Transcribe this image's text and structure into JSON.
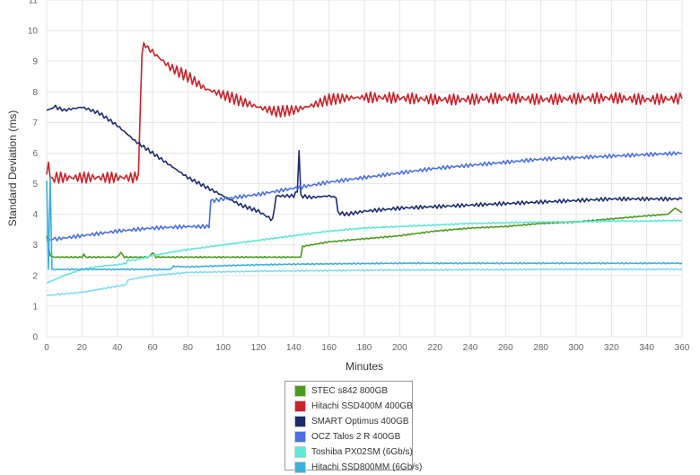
{
  "chart_data": {
    "type": "line",
    "title": "",
    "xlabel": "Minutes",
    "ylabel": "Standard Deviation (ms)",
    "xlim": [
      0,
      360
    ],
    "ylim": [
      0,
      11
    ],
    "xticks": [
      0,
      20,
      40,
      60,
      80,
      100,
      120,
      140,
      160,
      180,
      200,
      220,
      240,
      260,
      280,
      300,
      320,
      340,
      360
    ],
    "yticks": [
      0,
      1,
      2,
      3,
      4,
      5,
      6,
      7,
      8,
      9,
      10,
      11
    ],
    "grid": true,
    "legend_position": "bottom",
    "series": [
      {
        "name": "STEC s842 800GB",
        "color": "#4a9a1e",
        "x": [
          0,
          2,
          4,
          20,
          21,
          22,
          40,
          42,
          44,
          58,
          60,
          62,
          80,
          100,
          120,
          140,
          144,
          145,
          160,
          180,
          200,
          220,
          240,
          260,
          280,
          300,
          320,
          340,
          352,
          356,
          360
        ],
        "y": [
          3.3,
          2.65,
          2.6,
          2.6,
          2.7,
          2.6,
          2.6,
          2.75,
          2.6,
          2.6,
          2.75,
          2.6,
          2.6,
          2.6,
          2.6,
          2.6,
          2.6,
          2.95,
          3.1,
          3.2,
          3.3,
          3.45,
          3.55,
          3.6,
          3.7,
          3.75,
          3.85,
          3.95,
          4.0,
          4.2,
          4.05
        ]
      },
      {
        "name": "Hitachi SSD400M 400GB",
        "color": "#cc2229",
        "x": [
          0,
          1,
          2,
          50,
          52,
          53,
          54,
          56,
          60,
          70,
          80,
          90,
          100,
          110,
          120,
          130,
          140,
          150,
          160,
          170,
          180,
          200,
          220,
          240,
          260,
          280,
          300,
          320,
          340,
          360
        ],
        "y": [
          5.3,
          5.7,
          5.2,
          5.2,
          5.3,
          7.2,
          9.4,
          9.5,
          9.3,
          8.8,
          8.5,
          8.1,
          7.9,
          7.7,
          7.5,
          7.35,
          7.4,
          7.55,
          7.75,
          7.8,
          7.82,
          7.8,
          7.75,
          7.75,
          7.8,
          7.75,
          7.78,
          7.8,
          7.75,
          7.78
        ]
      },
      {
        "name": "SMART Optimus 400GB",
        "color": "#1c2d6e",
        "x": [
          0,
          5,
          10,
          20,
          30,
          40,
          50,
          60,
          70,
          80,
          90,
          100,
          110,
          120,
          127,
          128,
          130,
          140,
          142,
          143,
          144,
          150,
          160,
          164,
          165,
          170,
          180,
          200,
          220,
          240,
          260,
          280,
          300,
          320,
          340,
          360
        ],
        "y": [
          7.4,
          7.5,
          7.4,
          7.5,
          7.3,
          6.9,
          6.4,
          6.0,
          5.6,
          5.2,
          4.9,
          4.6,
          4.3,
          4.1,
          3.85,
          3.8,
          4.6,
          4.6,
          4.75,
          6.1,
          4.6,
          4.55,
          4.6,
          4.55,
          4.05,
          4.0,
          4.1,
          4.2,
          4.25,
          4.3,
          4.35,
          4.4,
          4.45,
          4.5,
          4.5,
          4.5
        ]
      },
      {
        "name": "OCZ Talos 2 R 400GB",
        "color": "#4b6fe6",
        "x": [
          0,
          20,
          40,
          60,
          80,
          92,
          93,
          95,
          100,
          120,
          140,
          160,
          180,
          200,
          220,
          240,
          260,
          280,
          300,
          320,
          340,
          360
        ],
        "y": [
          3.15,
          3.3,
          3.45,
          3.55,
          3.6,
          3.6,
          4.45,
          4.45,
          4.5,
          4.65,
          4.85,
          5.05,
          5.2,
          5.35,
          5.5,
          5.6,
          5.7,
          5.8,
          5.85,
          5.9,
          5.95,
          6.0
        ]
      },
      {
        "name": "Toshiba PX02SM (6Gb/s)",
        "color": "#5ee8d8",
        "x": [
          0,
          10,
          20,
          30,
          40,
          45,
          46,
          50,
          60,
          80,
          100,
          120,
          140,
          160,
          180,
          200,
          220,
          240,
          260,
          280,
          300,
          320,
          340,
          360
        ],
        "y": [
          1.75,
          2.0,
          2.2,
          2.3,
          2.35,
          2.4,
          2.5,
          2.5,
          2.65,
          2.85,
          3.0,
          3.15,
          3.3,
          3.45,
          3.55,
          3.6,
          3.65,
          3.7,
          3.72,
          3.75,
          3.75,
          3.78,
          3.78,
          3.8
        ]
      },
      {
        "name": "Hitachi SSD800MM (6Gb/s)",
        "color": "#3bb0dc",
        "x": [
          0,
          1,
          2,
          3,
          5,
          20,
          40,
          60,
          70,
          72,
          80,
          100,
          120,
          140,
          160,
          180,
          200,
          220,
          240,
          260,
          280,
          300,
          320,
          340,
          360
        ],
        "y": [
          5.1,
          2.2,
          5.2,
          2.2,
          2.2,
          2.2,
          2.2,
          2.2,
          2.2,
          2.3,
          2.28,
          2.32,
          2.35,
          2.37,
          2.38,
          2.39,
          2.4,
          2.4,
          2.4,
          2.4,
          2.4,
          2.4,
          2.4,
          2.4,
          2.4
        ]
      },
      {
        "name": "",
        "color": "#7fdcf2",
        "x": [
          0,
          10,
          20,
          30,
          40,
          45,
          46,
          50,
          60,
          80,
          100,
          120,
          140,
          160,
          180,
          200,
          220,
          240,
          260,
          280,
          300,
          320,
          340,
          360
        ],
        "y": [
          1.35,
          1.4,
          1.45,
          1.55,
          1.65,
          1.7,
          1.85,
          1.9,
          2.0,
          2.1,
          2.12,
          2.14,
          2.15,
          2.16,
          2.17,
          2.18,
          2.18,
          2.19,
          2.19,
          2.2,
          2.2,
          2.2,
          2.2,
          2.2
        ]
      }
    ]
  }
}
